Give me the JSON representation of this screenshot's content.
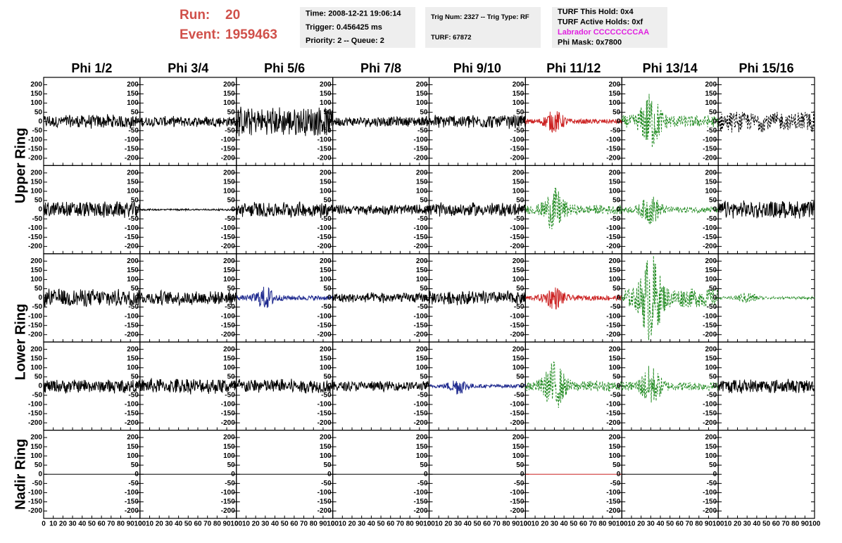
{
  "header": {
    "run_label": "Run:",
    "run": "20",
    "event_label": "Event:",
    "event": "1959463",
    "color": "#d0504a"
  },
  "info_boxes": [
    [
      {
        "text": "Time: 2008-12-21 19:06:14"
      },
      {
        "text": "Trigger: 0.456425 ms"
      },
      {
        "text": "Priority: 2 -- Queue: 2"
      }
    ],
    [
      {
        "text": "Trig Num: 2327 -- Trig Type: RF"
      },
      {
        "text": "TURF: 67872"
      }
    ],
    [
      {
        "text": "TURF This Hold: 0x4"
      },
      {
        "text": "TURF Active Holds: 0xf"
      },
      {
        "text": "Labrador CCCCCCCCAA",
        "color": "#e020e0"
      },
      {
        "text": "Phi Mask: 0x7800"
      }
    ]
  ],
  "chart_data": {
    "type": "waveform-grid",
    "columns": [
      "Phi 1/2",
      "Phi 3/4",
      "Phi 5/6",
      "Phi 7/8",
      "Phi 9/10",
      "Phi 11/12",
      "Phi 13/14",
      "Phi 15/16"
    ],
    "row_groups": [
      {
        "label": "Upper Ring",
        "rows": 2
      },
      {
        "label": "Lower Ring",
        "rows": 2
      },
      {
        "label": "Nadir Ring",
        "rows": 1
      }
    ],
    "ylim": [
      -240,
      240
    ],
    "yticks": [
      200,
      150,
      100,
      50,
      0,
      -50,
      -100,
      -150,
      -200
    ],
    "xlim": [
      0,
      100
    ],
    "xticks": [
      0,
      10,
      20,
      30,
      40,
      50,
      60,
      70,
      80,
      90,
      100
    ],
    "traces": [
      [
        {
          "color": "#000000",
          "dashed": false,
          "peak": 40
        },
        {
          "color": "#000000",
          "dashed": false,
          "peak": 30
        },
        {
          "color": "#000000",
          "dashed": false,
          "peak": 80
        },
        {
          "color": "#000000",
          "dashed": false,
          "peak": 30
        },
        {
          "color": "#000000",
          "dashed": false,
          "peak": 40
        },
        {
          "color": "#cc2222",
          "dashed": false,
          "peak": 60
        },
        {
          "color": "#228b22",
          "dashed": true,
          "peak": 150
        },
        {
          "color": "#000000",
          "dashed": true,
          "peak": 60
        }
      ],
      [
        {
          "color": "#000000",
          "dashed": false,
          "peak": 45
        },
        {
          "color": "#000000",
          "dashed": false,
          "peak": 5
        },
        {
          "color": "#000000",
          "dashed": false,
          "peak": 45
        },
        {
          "color": "#000000",
          "dashed": false,
          "peak": 30
        },
        {
          "color": "#000000",
          "dashed": false,
          "peak": 40
        },
        {
          "color": "#228b22",
          "dashed": true,
          "peak": 120
        },
        {
          "color": "#228b22",
          "dashed": true,
          "peak": 80
        },
        {
          "color": "#000000",
          "dashed": false,
          "peak": 50
        }
      ],
      [
        {
          "color": "#000000",
          "dashed": false,
          "peak": 50
        },
        {
          "color": "#000000",
          "dashed": false,
          "peak": 40
        },
        {
          "color": "#1f2a8f",
          "dashed": false,
          "peak": 60
        },
        {
          "color": "#000000",
          "dashed": false,
          "peak": 30
        },
        {
          "color": "#000000",
          "dashed": false,
          "peak": 40
        },
        {
          "color": "#cc2222",
          "dashed": false,
          "peak": 60
        },
        {
          "color": "#228b22",
          "dashed": true,
          "peak": 230
        },
        {
          "color": "#228b22",
          "dashed": true,
          "peak": 30
        }
      ],
      [
        {
          "color": "#000000",
          "dashed": false,
          "peak": 40
        },
        {
          "color": "#000000",
          "dashed": false,
          "peak": 45
        },
        {
          "color": "#000000",
          "dashed": false,
          "peak": 40
        },
        {
          "color": "#000000",
          "dashed": false,
          "peak": 30
        },
        {
          "color": "#1f2a8f",
          "dashed": false,
          "peak": 45
        },
        {
          "color": "#228b22",
          "dashed": true,
          "peak": 130
        },
        {
          "color": "#228b22",
          "dashed": true,
          "peak": 110
        },
        {
          "color": "#000000",
          "dashed": false,
          "peak": 40
        }
      ],
      [
        {
          "color": "#000000",
          "dashed": false,
          "peak": 0
        },
        {
          "color": "#000000",
          "dashed": false,
          "peak": 0
        },
        {
          "color": "#000000",
          "dashed": false,
          "peak": 0
        },
        {
          "color": "#000000",
          "dashed": false,
          "peak": 0
        },
        {
          "color": "#000000",
          "dashed": false,
          "peak": 0
        },
        {
          "color": "#cc2222",
          "dashed": false,
          "peak": 0
        },
        {
          "color": "#000000",
          "dashed": false,
          "peak": 0
        },
        {
          "color": null,
          "dashed": false,
          "peak": null
        }
      ]
    ]
  }
}
